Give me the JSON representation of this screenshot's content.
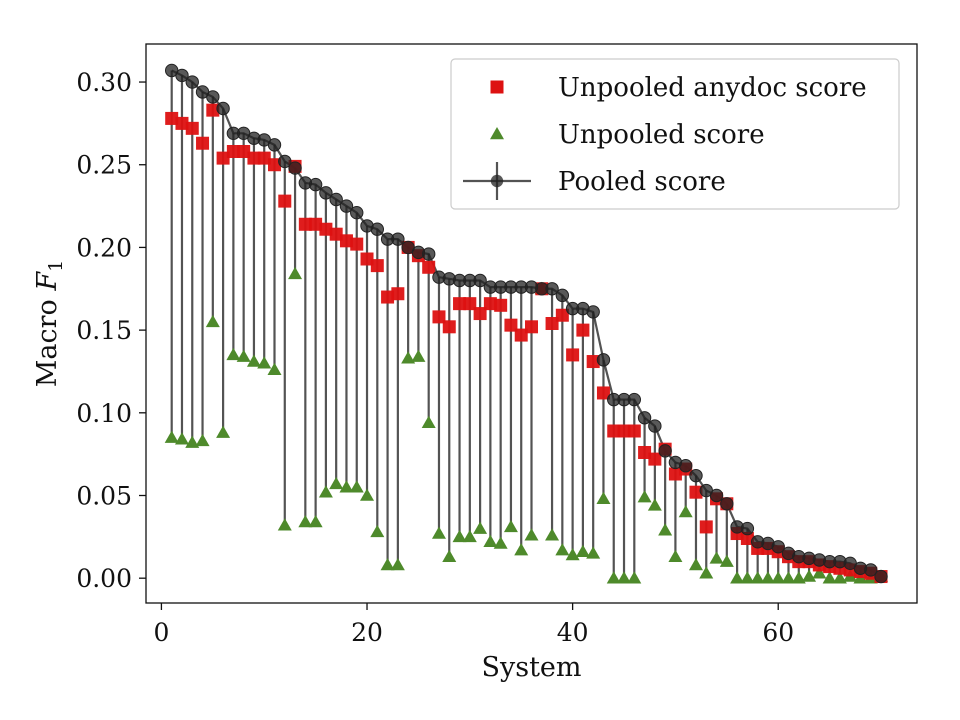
{
  "chart_data": {
    "type": "scatter",
    "xlabel": "System",
    "ylabel_prefix": "Macro ",
    "ylabel_symbol": "F",
    "ylabel_sub": "1",
    "xlim": [
      -1.5,
      73.5
    ],
    "ylim": [
      -0.015,
      0.323
    ],
    "xticks": [
      0,
      20,
      40,
      60
    ],
    "yticks": [
      0.0,
      0.05,
      0.1,
      0.15,
      0.2,
      0.25,
      0.3
    ],
    "ytick_labels": [
      "0.00",
      "0.05",
      "0.10",
      "0.15",
      "0.20",
      "0.25",
      "0.30"
    ],
    "xtick_labels": [
      "0",
      "20",
      "40",
      "60"
    ],
    "legend_position": "upper-right",
    "colors": {
      "pooled": "#222222",
      "anydoc": "#dd1111",
      "unpooled": "#4e8a2b"
    },
    "x": [
      1,
      2,
      3,
      4,
      5,
      6,
      7,
      8,
      9,
      10,
      11,
      12,
      13,
      14,
      15,
      16,
      17,
      18,
      19,
      20,
      21,
      22,
      23,
      24,
      25,
      26,
      27,
      28,
      29,
      30,
      31,
      32,
      33,
      34,
      35,
      36,
      37,
      38,
      39,
      40,
      41,
      42,
      43,
      44,
      45,
      46,
      47,
      48,
      49,
      50,
      51,
      52,
      53,
      54,
      55,
      56,
      57,
      58,
      59,
      60,
      61,
      62,
      63,
      64,
      65,
      66,
      67,
      68,
      69,
      70
    ],
    "series": [
      {
        "name": "Unpooled anydoc score",
        "marker": "square",
        "values": [
          0.278,
          0.275,
          0.272,
          0.263,
          0.283,
          0.254,
          0.258,
          0.258,
          0.254,
          0.254,
          0.25,
          0.228,
          0.249,
          0.214,
          0.214,
          0.211,
          0.208,
          0.204,
          0.202,
          0.193,
          0.189,
          0.17,
          0.172,
          0.2,
          0.195,
          0.188,
          0.158,
          0.152,
          0.166,
          0.166,
          0.16,
          0.166,
          0.165,
          0.153,
          0.147,
          0.152,
          0.175,
          0.154,
          0.159,
          0.135,
          0.15,
          0.131,
          0.112,
          0.089,
          0.089,
          0.089,
          0.076,
          0.072,
          0.078,
          0.063,
          0.066,
          0.052,
          0.031,
          0.048,
          0.045,
          0.027,
          0.024,
          0.018,
          0.018,
          0.016,
          0.013,
          0.01,
          0.01,
          0.008,
          0.007,
          0.006,
          0.005,
          0.004,
          0.003,
          0.001
        ]
      },
      {
        "name": "Unpooled score",
        "marker": "triangle",
        "values": [
          0.085,
          0.084,
          0.082,
          0.083,
          0.155,
          0.088,
          0.135,
          0.134,
          0.131,
          0.13,
          0.126,
          0.032,
          0.184,
          0.034,
          0.034,
          0.052,
          0.057,
          0.055,
          0.055,
          0.05,
          0.028,
          0.008,
          0.008,
          0.133,
          0.134,
          0.094,
          0.027,
          0.013,
          0.025,
          0.025,
          0.03,
          0.022,
          0.021,
          0.031,
          0.017,
          0.026,
          0.175,
          0.026,
          0.017,
          0.014,
          0.016,
          0.015,
          0.048,
          0.0,
          0.0,
          0.0,
          0.049,
          0.044,
          0.029,
          0.013,
          0.04,
          0.008,
          0.003,
          0.012,
          0.01,
          0.0,
          0.0,
          0.0,
          0.0,
          0.0,
          0.0,
          0.0,
          0.001,
          0.003,
          0.0,
          0.0,
          0.001,
          0.0,
          0.0,
          0.001
        ]
      },
      {
        "name": "Pooled score",
        "marker": "circle-line",
        "values": [
          0.307,
          0.304,
          0.3,
          0.294,
          0.291,
          0.284,
          0.269,
          0.269,
          0.266,
          0.265,
          0.262,
          0.252,
          0.248,
          0.239,
          0.238,
          0.233,
          0.229,
          0.225,
          0.221,
          0.213,
          0.211,
          0.205,
          0.205,
          0.2,
          0.197,
          0.196,
          0.182,
          0.181,
          0.18,
          0.18,
          0.18,
          0.176,
          0.176,
          0.176,
          0.176,
          0.176,
          0.175,
          0.175,
          0.171,
          0.163,
          0.163,
          0.161,
          0.132,
          0.108,
          0.108,
          0.108,
          0.097,
          0.092,
          0.077,
          0.07,
          0.068,
          0.062,
          0.053,
          0.05,
          0.045,
          0.031,
          0.03,
          0.022,
          0.021,
          0.019,
          0.015,
          0.013,
          0.012,
          0.011,
          0.01,
          0.01,
          0.009,
          0.006,
          0.005,
          0.001
        ]
      }
    ]
  }
}
